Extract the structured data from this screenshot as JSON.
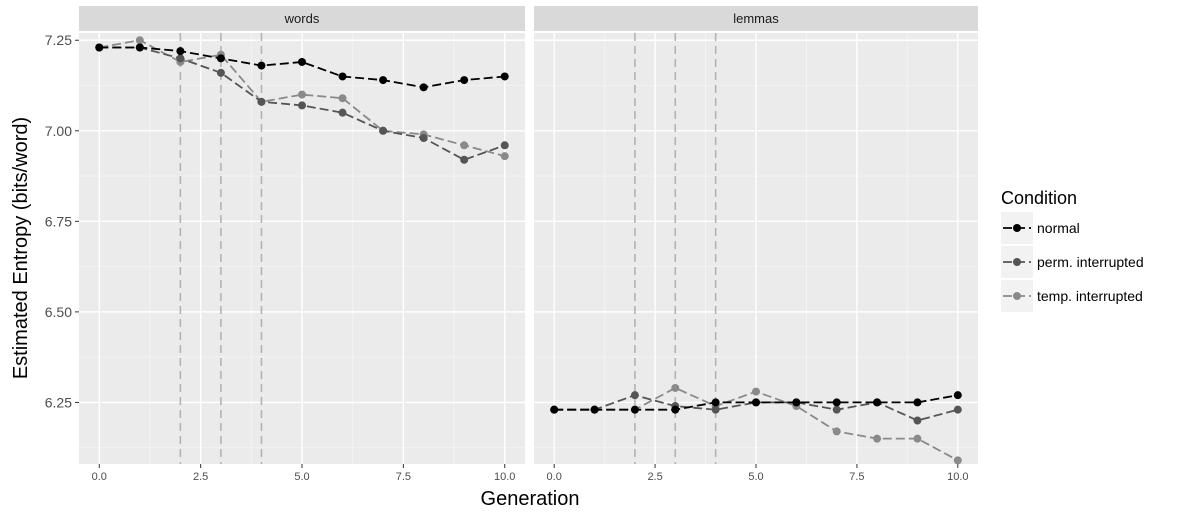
{
  "chart_data": {
    "type": "line",
    "xlabel": "Generation",
    "ylabel": "Estimated Entropy (bits/word)",
    "ylim": [
      6.08,
      7.27
    ],
    "xlim": [
      -0.5,
      10.5
    ],
    "x_ticks": [
      "0.0",
      "2.5",
      "5.0",
      "7.5",
      "10.0"
    ],
    "y_ticks": [
      "6.25",
      "6.50",
      "6.75",
      "7.00",
      "7.25"
    ],
    "grid": true,
    "legend": {
      "title": "Condition",
      "position": "right",
      "entries": [
        "normal",
        "perm. interrupted",
        "temp. interrupted"
      ]
    },
    "series_colors": [
      "#000000",
      "#555555",
      "#8a8a8a"
    ],
    "vlines": [
      2,
      3,
      4
    ],
    "panels": [
      {
        "title": "words",
        "series": [
          {
            "name": "normal",
            "x": [
              0,
              1,
              2,
              3,
              4,
              5,
              6,
              7,
              8,
              9,
              10
            ],
            "values": [
              7.23,
              7.23,
              7.22,
              7.2,
              7.18,
              7.19,
              7.15,
              7.14,
              7.12,
              7.14,
              7.15
            ]
          },
          {
            "name": "perm. interrupted",
            "x": [
              0,
              1,
              2,
              3,
              4,
              5,
              6,
              7,
              8,
              9,
              10
            ],
            "values": [
              7.23,
              7.23,
              7.2,
              7.16,
              7.08,
              7.07,
              7.05,
              7.0,
              6.98,
              6.92,
              6.96
            ]
          },
          {
            "name": "temp. interrupted",
            "x": [
              0,
              1,
              2,
              3,
              4,
              5,
              6,
              7,
              8,
              9,
              10
            ],
            "values": [
              7.23,
              7.25,
              7.19,
              7.21,
              7.08,
              7.1,
              7.09,
              7.0,
              6.99,
              6.96,
              6.93
            ]
          }
        ]
      },
      {
        "title": "lemmas",
        "series": [
          {
            "name": "normal",
            "x": [
              0,
              1,
              2,
              3,
              4,
              5,
              6,
              7,
              8,
              9,
              10
            ],
            "values": [
              6.23,
              6.23,
              6.23,
              6.23,
              6.25,
              6.25,
              6.25,
              6.25,
              6.25,
              6.25,
              6.27
            ]
          },
          {
            "name": "perm. interrupted",
            "x": [
              0,
              1,
              2,
              3,
              4,
              5,
              6,
              7,
              8,
              9,
              10
            ],
            "values": [
              6.23,
              6.23,
              6.27,
              6.24,
              6.23,
              6.25,
              6.25,
              6.23,
              6.25,
              6.2,
              6.23
            ]
          },
          {
            "name": "temp. interrupted",
            "x": [
              0,
              1,
              2,
              3,
              4,
              5,
              6,
              7,
              8,
              9,
              10
            ],
            "values": [
              6.23,
              6.23,
              6.23,
              6.29,
              6.24,
              6.28,
              6.24,
              6.17,
              6.15,
              6.15,
              6.09
            ]
          }
        ]
      }
    ]
  }
}
